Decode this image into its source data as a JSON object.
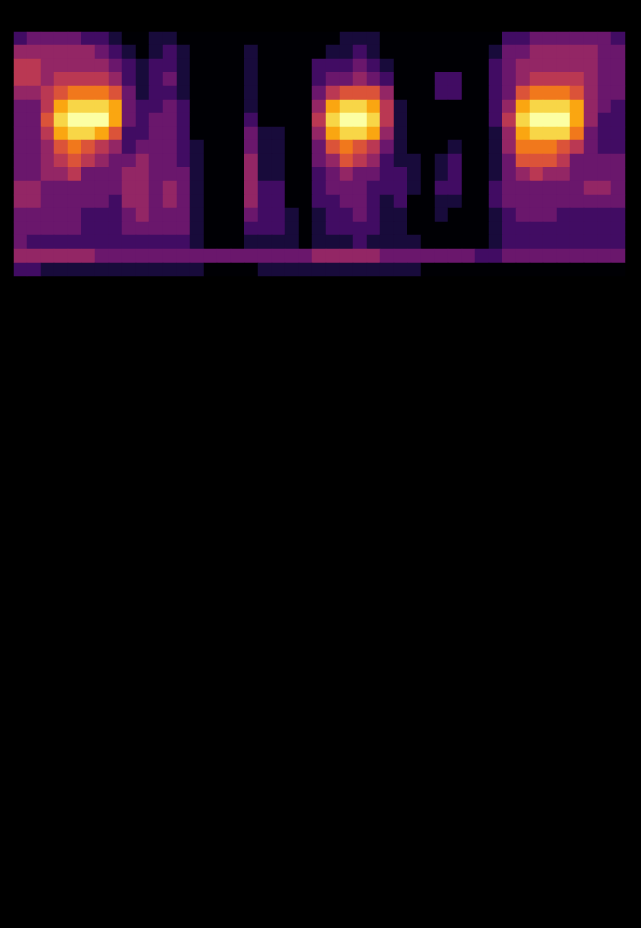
{
  "chart_data": {
    "type": "heatmap",
    "tick_labels": false,
    "grid": false,
    "value_range": [
      0,
      10
    ],
    "cells": [
      [
        2,
        3,
        3,
        3,
        3,
        2,
        2,
        1,
        0,
        0,
        1,
        1,
        0,
        0,
        0,
        0,
        0,
        0,
        0,
        0,
        0,
        0,
        0,
        0,
        1,
        1,
        1,
        0,
        0,
        0,
        0,
        0,
        0,
        0,
        0,
        0,
        2,
        2,
        3,
        3,
        3,
        3,
        3,
        3,
        2
      ],
      [
        4,
        4,
        4,
        4,
        4,
        4,
        3,
        2,
        1,
        0,
        1,
        2,
        1,
        0,
        0,
        0,
        0,
        1,
        0,
        0,
        0,
        0,
        0,
        1,
        1,
        2,
        1,
        0,
        0,
        0,
        0,
        0,
        0,
        0,
        0,
        1,
        3,
        3,
        4,
        4,
        4,
        4,
        4,
        3,
        3
      ],
      [
        5,
        5,
        4,
        4,
        4,
        4,
        4,
        3,
        2,
        1,
        2,
        2,
        1,
        0,
        0,
        0,
        0,
        1,
        0,
        0,
        0,
        0,
        2,
        2,
        2,
        3,
        2,
        1,
        0,
        0,
        0,
        0,
        0,
        0,
        0,
        2,
        3,
        4,
        4,
        4,
        4,
        4,
        4,
        3,
        3
      ],
      [
        5,
        5,
        4,
        5,
        5,
        5,
        5,
        4,
        2,
        1,
        2,
        3,
        1,
        0,
        0,
        0,
        0,
        1,
        0,
        0,
        0,
        0,
        2,
        3,
        3,
        4,
        3,
        2,
        0,
        0,
        0,
        2,
        2,
        0,
        0,
        2,
        3,
        4,
        5,
        5,
        5,
        5,
        4,
        3,
        3
      ],
      [
        4,
        4,
        5,
        6,
        7,
        7,
        7,
        6,
        3,
        1,
        2,
        2,
        1,
        0,
        0,
        0,
        0,
        1,
        0,
        0,
        0,
        0,
        3,
        5,
        6,
        6,
        6,
        4,
        0,
        0,
        0,
        2,
        2,
        0,
        0,
        2,
        3,
        6,
        7,
        7,
        7,
        6,
        4,
        3,
        3
      ],
      [
        3,
        3,
        5,
        8,
        9,
        9,
        9,
        8,
        3,
        2,
        2,
        3,
        2,
        0,
        0,
        0,
        0,
        1,
        0,
        0,
        0,
        0,
        4,
        8,
        9,
        9,
        8,
        5,
        1,
        0,
        0,
        0,
        0,
        0,
        0,
        2,
        4,
        8,
        9,
        9,
        9,
        8,
        4,
        3,
        2
      ],
      [
        3,
        3,
        6,
        9,
        10,
        10,
        10,
        8,
        3,
        2,
        3,
        3,
        2,
        0,
        0,
        0,
        0,
        2,
        0,
        0,
        0,
        0,
        5,
        9,
        10,
        10,
        9,
        5,
        1,
        0,
        0,
        0,
        0,
        0,
        0,
        2,
        5,
        9,
        10,
        10,
        10,
        8,
        4,
        2,
        2
      ],
      [
        3,
        3,
        5,
        8,
        9,
        9,
        8,
        6,
        2,
        2,
        3,
        3,
        2,
        0,
        0,
        0,
        0,
        3,
        1,
        1,
        0,
        0,
        4,
        8,
        9,
        9,
        8,
        4,
        1,
        0,
        0,
        0,
        0,
        0,
        0,
        1,
        4,
        8,
        9,
        9,
        9,
        7,
        3,
        2,
        2
      ],
      [
        3,
        3,
        4,
        6,
        7,
        6,
        5,
        4,
        2,
        3,
        3,
        3,
        2,
        1,
        0,
        0,
        0,
        3,
        1,
        1,
        0,
        0,
        3,
        6,
        7,
        6,
        5,
        3,
        1,
        0,
        0,
        0,
        1,
        0,
        0,
        1,
        4,
        7,
        7,
        7,
        6,
        5,
        3,
        2,
        2
      ],
      [
        3,
        3,
        4,
        5,
        6,
        5,
        4,
        3,
        3,
        4,
        3,
        3,
        2,
        1,
        0,
        0,
        0,
        4,
        1,
        1,
        0,
        0,
        3,
        4,
        6,
        5,
        4,
        2,
        1,
        1,
        0,
        1,
        2,
        0,
        0,
        1,
        3,
        6,
        6,
        6,
        5,
        3,
        3,
        3,
        3
      ],
      [
        3,
        3,
        4,
        4,
        5,
        3,
        3,
        3,
        4,
        4,
        3,
        3,
        3,
        1,
        0,
        0,
        0,
        4,
        1,
        1,
        0,
        0,
        2,
        3,
        4,
        3,
        3,
        2,
        2,
        1,
        0,
        1,
        2,
        0,
        0,
        1,
        3,
        4,
        5,
        4,
        4,
        3,
        3,
        3,
        3
      ],
      [
        4,
        4,
        3,
        3,
        3,
        3,
        3,
        3,
        4,
        4,
        3,
        4,
        3,
        1,
        0,
        0,
        0,
        4,
        2,
        2,
        0,
        0,
        2,
        3,
        3,
        3,
        2,
        2,
        2,
        1,
        0,
        2,
        2,
        0,
        0,
        2,
        3,
        3,
        3,
        3,
        3,
        3,
        4,
        4,
        3
      ],
      [
        4,
        4,
        3,
        3,
        3,
        3,
        3,
        2,
        4,
        4,
        3,
        4,
        3,
        1,
        0,
        0,
        0,
        4,
        2,
        2,
        0,
        0,
        2,
        2,
        3,
        3,
        2,
        1,
        2,
        0,
        0,
        1,
        1,
        0,
        0,
        2,
        3,
        3,
        3,
        3,
        3,
        3,
        3,
        3,
        3
      ],
      [
        3,
        3,
        3,
        3,
        3,
        2,
        2,
        2,
        3,
        4,
        3,
        3,
        3,
        1,
        0,
        0,
        0,
        3,
        2,
        2,
        1,
        0,
        1,
        2,
        2,
        3,
        2,
        1,
        1,
        0,
        0,
        1,
        0,
        0,
        0,
        1,
        2,
        3,
        3,
        3,
        2,
        2,
        2,
        2,
        2
      ],
      [
        3,
        3,
        3,
        3,
        3,
        2,
        2,
        2,
        3,
        3,
        3,
        3,
        3,
        1,
        0,
        0,
        0,
        2,
        2,
        2,
        1,
        0,
        1,
        2,
        2,
        2,
        2,
        1,
        1,
        0,
        0,
        0,
        0,
        0,
        0,
        1,
        2,
        2,
        2,
        2,
        2,
        2,
        2,
        2,
        2
      ],
      [
        3,
        2,
        2,
        2,
        2,
        2,
        2,
        2,
        2,
        2,
        2,
        2,
        2,
        1,
        0,
        0,
        0,
        1,
        1,
        1,
        1,
        0,
        1,
        1,
        1,
        2,
        1,
        1,
        1,
        1,
        0,
        0,
        0,
        0,
        0,
        1,
        2,
        2,
        2,
        2,
        2,
        2,
        2,
        2,
        2
      ],
      [
        4,
        4,
        4,
        4,
        4,
        4,
        3,
        3,
        3,
        3,
        3,
        3,
        3,
        3,
        3,
        3,
        3,
        3,
        3,
        3,
        3,
        3,
        4,
        4,
        4,
        4,
        4,
        3,
        3,
        3,
        3,
        3,
        3,
        3,
        2,
        2,
        3,
        3,
        3,
        3,
        3,
        3,
        3,
        3,
        3
      ],
      [
        2,
        2,
        1,
        1,
        1,
        1,
        1,
        1,
        1,
        1,
        1,
        1,
        1,
        1,
        0,
        0,
        0,
        0,
        1,
        1,
        1,
        1,
        1,
        1,
        1,
        1,
        1,
        1,
        1,
        1,
        0,
        0,
        0,
        0,
        0,
        0,
        0,
        0,
        0,
        0,
        0,
        0,
        0,
        0,
        0
      ]
    ]
  }
}
